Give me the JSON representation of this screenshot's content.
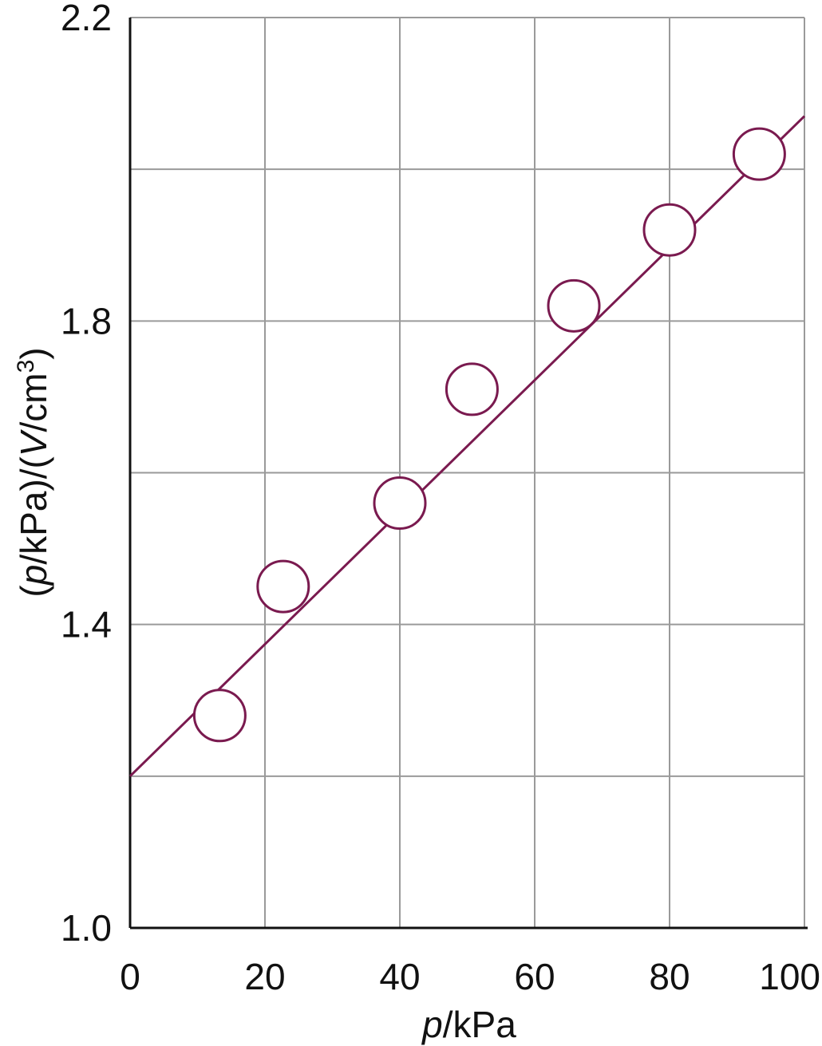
{
  "chart_data": {
    "type": "scatter",
    "xlabel_var": "p",
    "xlabel_unit": "/kPa",
    "ylabel_parts": {
      "open1": "(",
      "var1": "p",
      "unit1": "/kPa)/(",
      "var2": "V",
      "unit2": "/cm",
      "sup": "3",
      "close": ")"
    },
    "xlim": [
      0,
      100
    ],
    "ylim": [
      1.0,
      2.2
    ],
    "x_ticks": [
      "0",
      "20",
      "40",
      "60",
      "80",
      "100"
    ],
    "y_ticks": [
      "1.0",
      "1.4",
      "1.8",
      "2.2"
    ],
    "x_grid": [
      0,
      20,
      40,
      60,
      80,
      100
    ],
    "y_grid": [
      1.0,
      1.2,
      1.4,
      1.6,
      1.8,
      2.0,
      2.2
    ],
    "grid": true,
    "points": [
      {
        "x": 13.3,
        "y": 1.28
      },
      {
        "x": 22.7,
        "y": 1.45
      },
      {
        "x": 40.0,
        "y": 1.56
      },
      {
        "x": 50.7,
        "y": 1.71
      },
      {
        "x": 65.8,
        "y": 1.82
      },
      {
        "x": 80.0,
        "y": 1.92
      },
      {
        "x": 93.3,
        "y": 2.02
      }
    ],
    "fit_line": {
      "x": [
        0,
        100
      ],
      "y": [
        1.2,
        2.07
      ]
    },
    "colors": {
      "data": "#7a1a4f",
      "grid": "#9a9a9a",
      "axis": "#111111"
    }
  }
}
